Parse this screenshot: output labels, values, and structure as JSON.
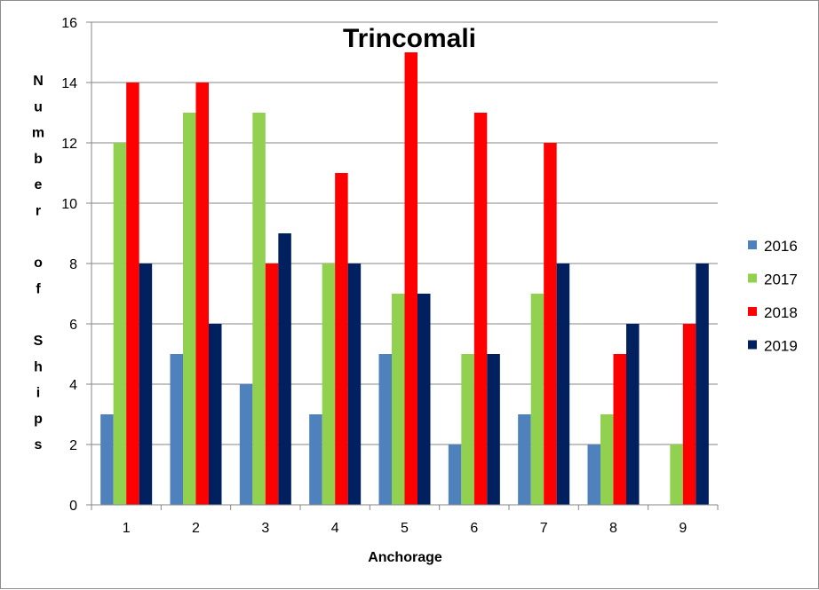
{
  "chart_data": {
    "type": "bar",
    "title": "Trincomali",
    "xlabel": "Anchorage",
    "ylabel": "Number of Ships",
    "ylabel_lines": [
      "N",
      "u",
      "m",
      "b",
      "e",
      "r",
      "",
      "o",
      "f",
      "",
      "S",
      "h",
      "i",
      "p",
      "s"
    ],
    "categories": [
      "1",
      "2",
      "3",
      "4",
      "5",
      "6",
      "7",
      "8",
      "9"
    ],
    "ylim": [
      0,
      16
    ],
    "yticks": [
      0,
      2,
      4,
      6,
      8,
      10,
      12,
      14,
      16
    ],
    "grid": true,
    "legend_position": "right",
    "series": [
      {
        "name": "2016",
        "color": "#4f81bd",
        "values": [
          3,
          5,
          4,
          3,
          5,
          2,
          3,
          2,
          0
        ]
      },
      {
        "name": "2017",
        "color": "#92d050",
        "values": [
          12,
          13,
          13,
          8,
          7,
          5,
          7,
          3,
          2
        ]
      },
      {
        "name": "2018",
        "color": "#ff0000",
        "values": [
          14,
          14,
          8,
          11,
          15,
          13,
          12,
          5,
          6
        ]
      },
      {
        "name": "2019",
        "color": "#002060",
        "values": [
          8,
          6,
          9,
          8,
          7,
          5,
          8,
          6,
          8
        ]
      }
    ]
  }
}
